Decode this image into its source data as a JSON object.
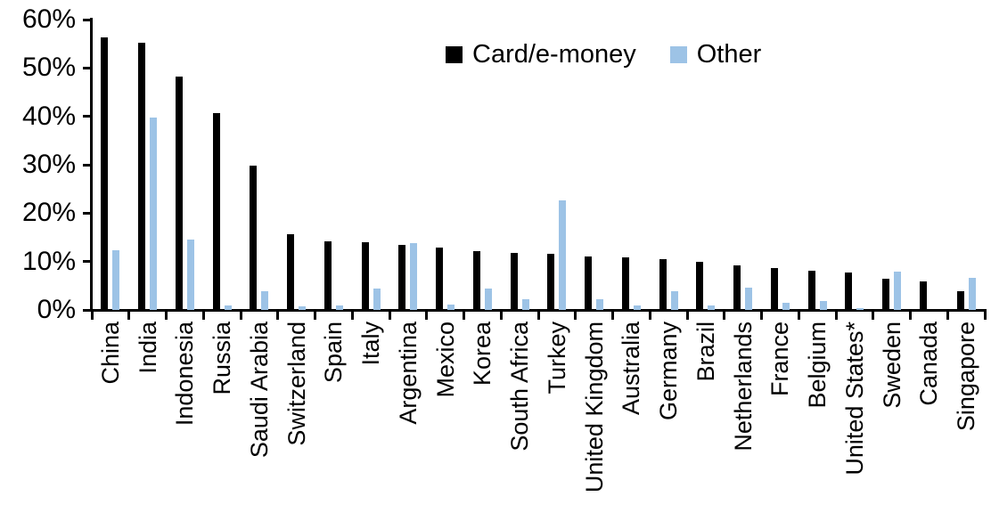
{
  "chart_data": {
    "type": "bar",
    "title": "",
    "xlabel": "",
    "ylabel": "",
    "ylim": [
      0,
      60
    ],
    "ytick_step": 10,
    "ytick_labels": [
      "0%",
      "10%",
      "20%",
      "30%",
      "40%",
      "50%",
      "60%"
    ],
    "grid": false,
    "legend_position": "top-center",
    "categories": [
      "China",
      "India",
      "Indonesia",
      "Russia",
      "Saudi Arabia",
      "Switzerland",
      "Spain",
      "Italy",
      "Argentina",
      "Mexico",
      "Korea",
      "South Africa",
      "Turkey",
      "United Kingdom",
      "Australia",
      "Germany",
      "Brazil",
      "Netherlands",
      "France",
      "Belgium",
      "United States*",
      "Sweden",
      "Canada",
      "Singapore"
    ],
    "series": [
      {
        "name": "Card/e-money",
        "color": "#000000",
        "values": [
          56.4,
          55.2,
          48.3,
          40.6,
          29.8,
          15.6,
          14.2,
          14.0,
          13.4,
          12.9,
          12.1,
          11.7,
          11.6,
          11.0,
          10.8,
          10.5,
          9.9,
          9.2,
          8.6,
          8.1,
          7.8,
          6.5,
          5.9,
          3.8
        ]
      },
      {
        "name": "Other",
        "color": "#9DC3E6",
        "values": [
          12.3,
          39.7,
          14.6,
          1.0,
          3.9,
          0.7,
          0.9,
          4.5,
          13.9,
          1.2,
          4.5,
          2.3,
          22.6,
          2.3,
          0.9,
          3.9,
          1.0,
          4.7,
          1.4,
          1.9,
          0.3,
          8.0,
          0.0,
          6.6
        ]
      }
    ]
  },
  "colors": {
    "background": "#ffffff",
    "axis": "#000000",
    "text": "#000000"
  }
}
